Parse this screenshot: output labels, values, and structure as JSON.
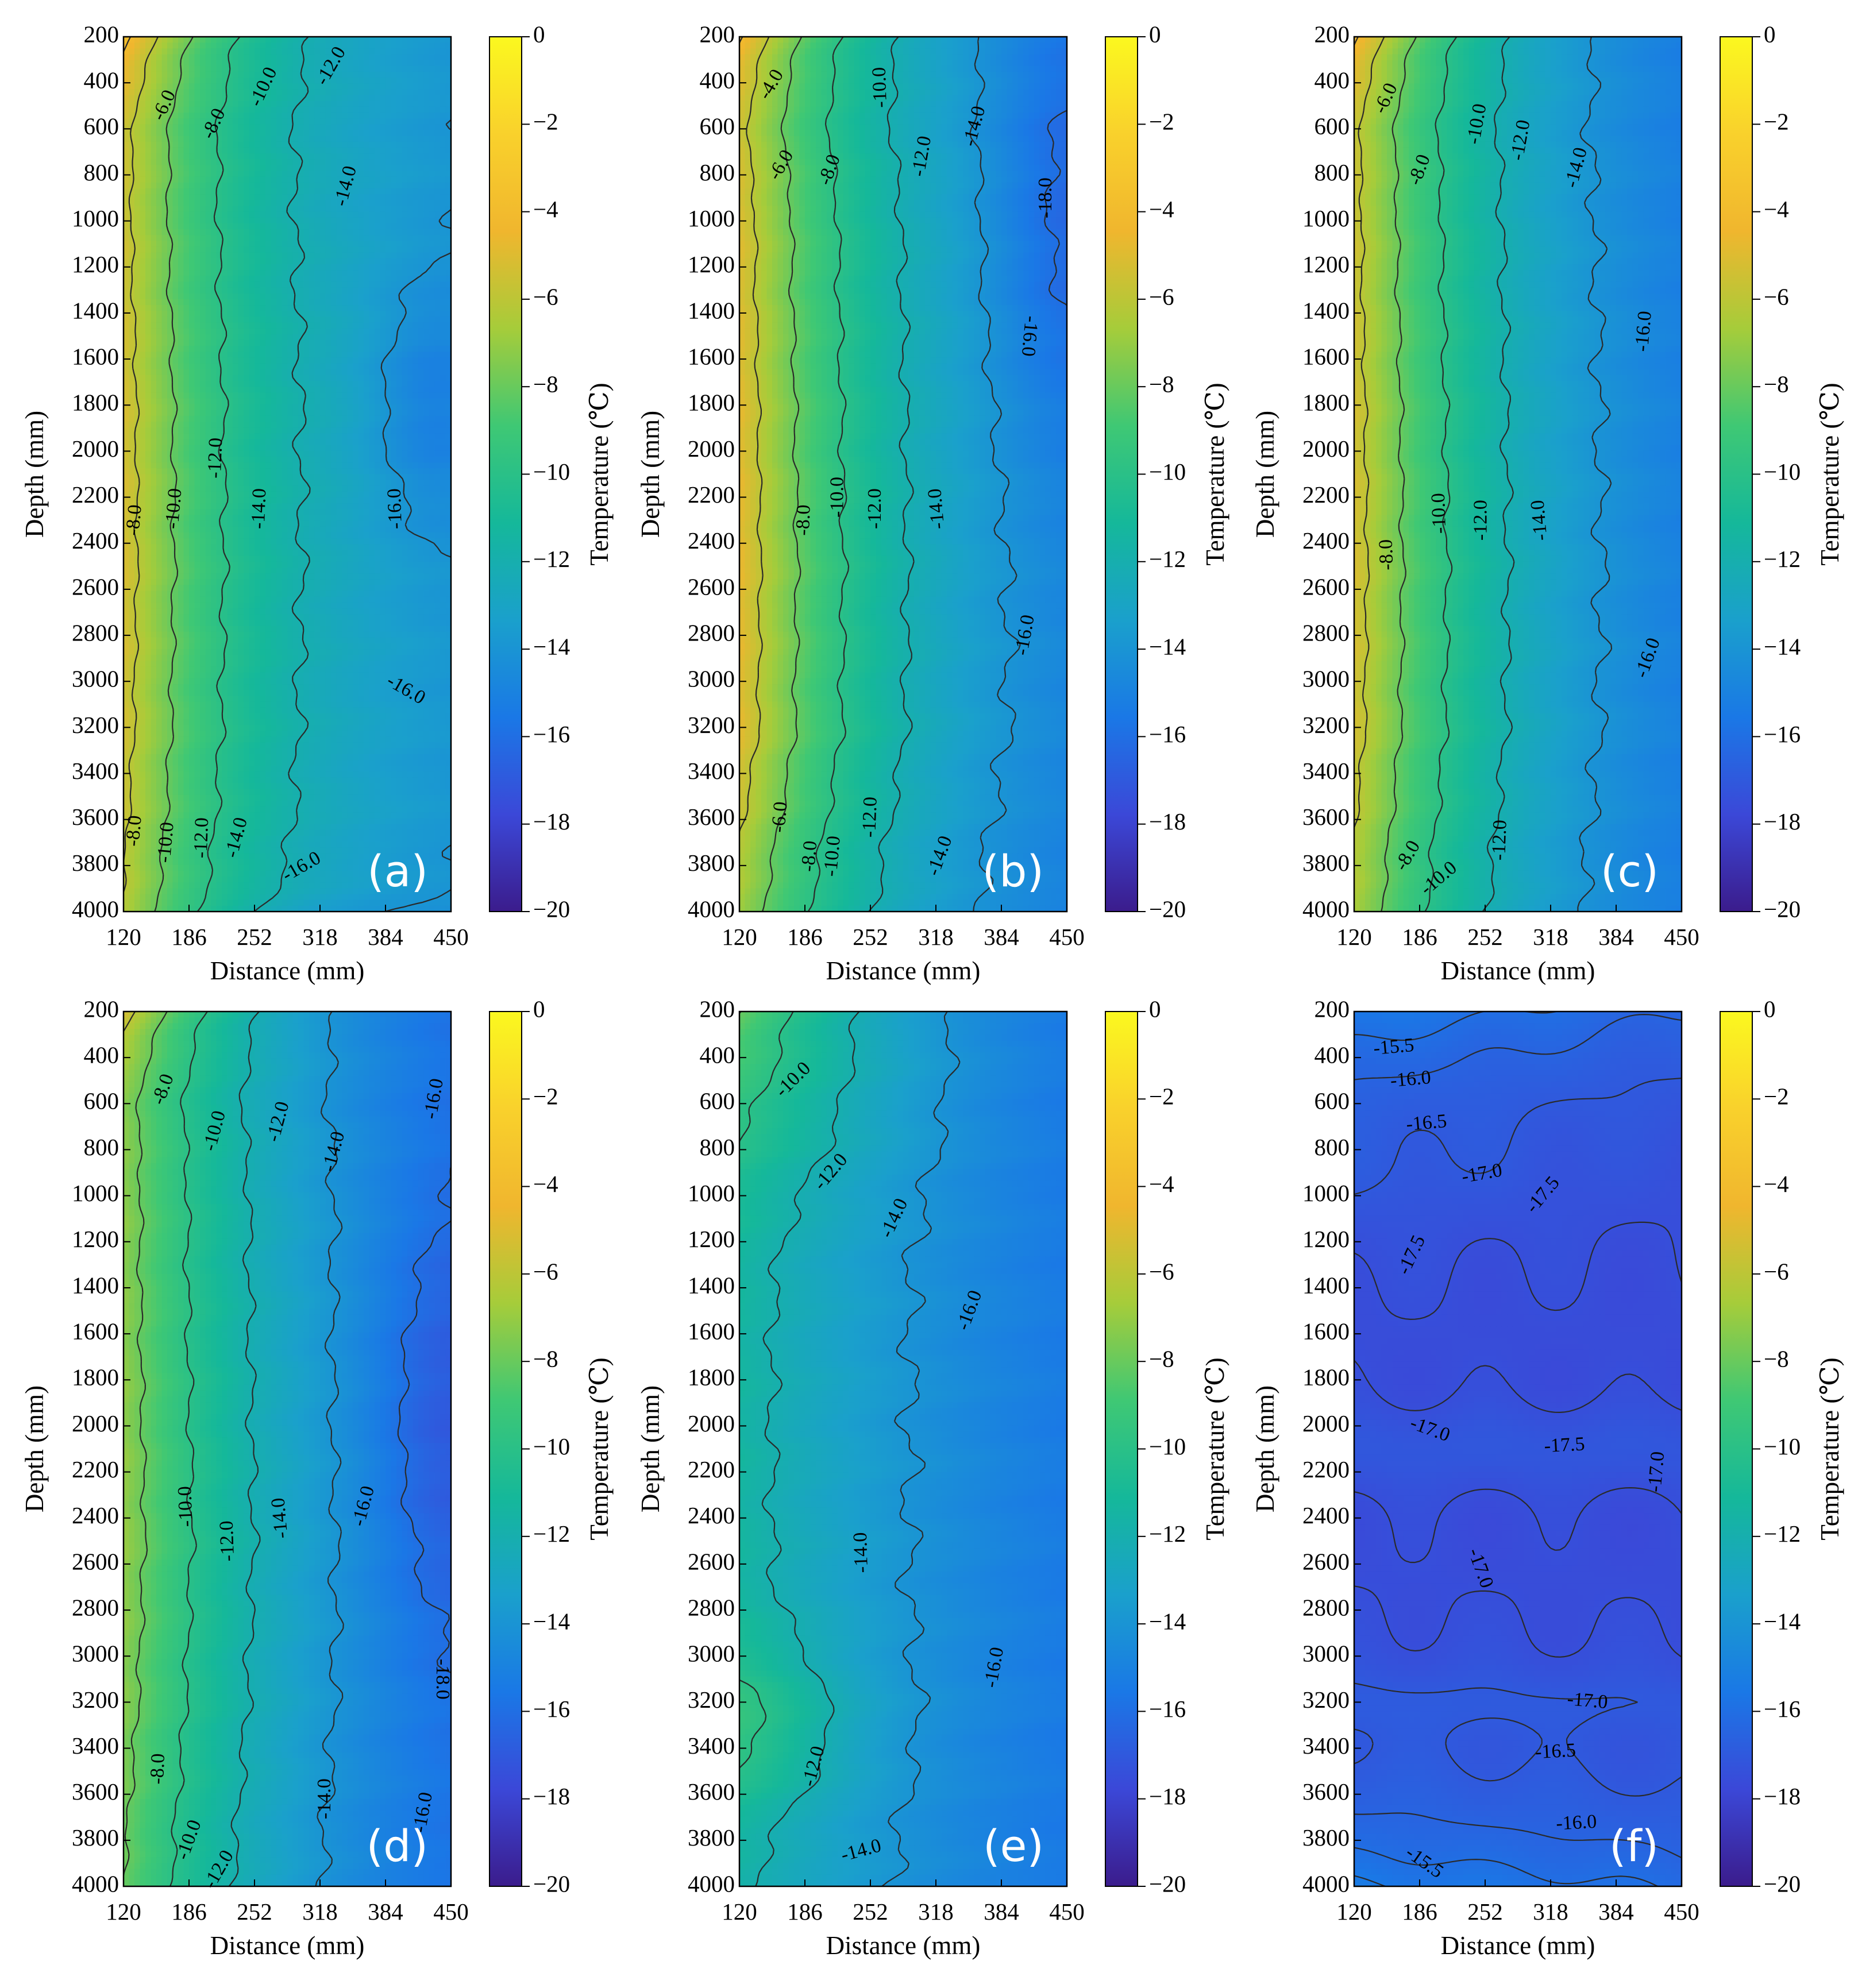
{
  "figure": {
    "colormap": [
      "#3b1c8c",
      "#3b48d8",
      "#1a78e6",
      "#1aa0cc",
      "#15b89a",
      "#3fc874",
      "#a6cc3a",
      "#f0b62e",
      "#f9d12c",
      "#fbf81f"
    ],
    "contour_line_color": "#2a2a2a"
  },
  "chart_data": [
    {
      "type": "heatmap",
      "label": "(a)",
      "xlabel": "Distance (mm)",
      "ylabel": "Depth (mm)",
      "colorbar_label": "Temperature (℃)",
      "x_ticks": [
        "120",
        "186",
        "252",
        "318",
        "384",
        "450"
      ],
      "y_ticks": [
        "200",
        "400",
        "600",
        "800",
        "1000",
        "1200",
        "1400",
        "1600",
        "1800",
        "2000",
        "2200",
        "2400",
        "2600",
        "2800",
        "3000",
        "3200",
        "3400",
        "3600",
        "3800",
        "4000"
      ],
      "colorbar_ticks": [
        "0",
        "−2",
        "−4",
        "−6",
        "−8",
        "−10",
        "−12",
        "−14",
        "−16",
        "−18",
        "−20"
      ],
      "xlim": [
        120,
        450
      ],
      "ylim": [
        200,
        4000
      ],
      "clim": [
        -20,
        0
      ],
      "y_inverted": true,
      "field": {
        "base": -14.8,
        "t0": -5.5,
        "amp": 1.5,
        "kb": 1.4,
        "spread": 145,
        "shape": [
          -0.6,
          -0.1,
          0.2,
          0.25,
          0.1,
          -0.4
        ],
        "extra": [
          {
            "x": 430,
            "y": 1800,
            "sx": 60,
            "sy": 500,
            "a": -1.4
          },
          {
            "x": 320,
            "y": 4200,
            "sx": 150,
            "sy": 250,
            "a": -1.4
          }
        ]
      },
      "contour_levels": [
        -4,
        -6,
        -8,
        -10,
        -12,
        -14,
        -16,
        -18
      ],
      "contour_labels": [
        {
          "text": "-6.0",
          "x": 162,
          "y": 500,
          "rot": -65
        },
        {
          "text": "-8.0",
          "x": 212,
          "y": 580,
          "rot": -65
        },
        {
          "text": "-10.0",
          "x": 262,
          "y": 420,
          "rot": -65
        },
        {
          "text": "-12.0",
          "x": 330,
          "y": 330,
          "rot": -60
        },
        {
          "text": "-14.0",
          "x": 345,
          "y": 850,
          "rot": -75
        },
        {
          "text": "-8.0",
          "x": 132,
          "y": 2300,
          "rot": -85
        },
        {
          "text": "-10.0",
          "x": 172,
          "y": 2250,
          "rot": -85
        },
        {
          "text": "-12.0",
          "x": 214,
          "y": 2030,
          "rot": -88
        },
        {
          "text": "-14.0",
          "x": 258,
          "y": 2250,
          "rot": -88
        },
        {
          "text": "-16.0",
          "x": 395,
          "y": 2250,
          "rot": -92
        },
        {
          "text": "-16.0",
          "x": 404,
          "y": 3040,
          "rot": 30
        },
        {
          "text": "-8.0",
          "x": 132,
          "y": 3650,
          "rot": -85
        },
        {
          "text": "-10.0",
          "x": 164,
          "y": 3700,
          "rot": -85
        },
        {
          "text": "-12.0",
          "x": 200,
          "y": 3680,
          "rot": -88
        },
        {
          "text": "-14.0",
          "x": 235,
          "y": 3680,
          "rot": -75
        },
        {
          "text": "-16.0",
          "x": 300,
          "y": 3810,
          "rot": -30
        }
      ]
    },
    {
      "type": "heatmap",
      "label": "(b)",
      "xlabel": "Distance (mm)",
      "ylabel": "Depth (mm)",
      "colorbar_label": "Temperature (℃)",
      "x_ticks": [
        "120",
        "186",
        "252",
        "318",
        "384",
        "450"
      ],
      "y_ticks": [
        "200",
        "400",
        "600",
        "800",
        "1000",
        "1200",
        "1400",
        "1600",
        "1800",
        "2000",
        "2200",
        "2400",
        "2600",
        "2800",
        "3000",
        "3200",
        "3400",
        "3600",
        "3800",
        "4000"
      ],
      "colorbar_ticks": [
        "0",
        "−2",
        "−4",
        "−6",
        "−8",
        "−10",
        "−12",
        "−14",
        "−16",
        "−18",
        "−20"
      ],
      "xlim": [
        120,
        450
      ],
      "ylim": [
        200,
        4000
      ],
      "clim": [
        -20,
        0
      ],
      "y_inverted": true,
      "field": {
        "base": -16.5,
        "t0": -5.0,
        "amp": 1.8,
        "kb": 1.6,
        "spread": 175,
        "shape": [
          -1.2,
          -0.1,
          0.1,
          0.2,
          0.1,
          -1.0
        ],
        "extra": [
          {
            "x": 450,
            "y": 1000,
            "sx": 70,
            "sy": 900,
            "a": -1.5
          }
        ]
      },
      "contour_levels": [
        -4,
        -6,
        -8,
        -10,
        -12,
        -14,
        -16,
        -18
      ],
      "contour_labels": [
        {
          "text": "-4.0",
          "x": 153,
          "y": 410,
          "rot": -60
        },
        {
          "text": "-6.0",
          "x": 163,
          "y": 760,
          "rot": -60
        },
        {
          "text": "-8.0",
          "x": 212,
          "y": 780,
          "rot": -70
        },
        {
          "text": "-10.0",
          "x": 263,
          "y": 420,
          "rot": -92
        },
        {
          "text": "-12.0",
          "x": 305,
          "y": 720,
          "rot": -80
        },
        {
          "text": "-14.0",
          "x": 358,
          "y": 590,
          "rot": -75
        },
        {
          "text": "-18.0",
          "x": 430,
          "y": 900,
          "rot": -90
        },
        {
          "text": "-16.0",
          "x": 411,
          "y": 1500,
          "rot": 95
        },
        {
          "text": "-8.0",
          "x": 186,
          "y": 2300,
          "rot": -88
        },
        {
          "text": "-10.0",
          "x": 220,
          "y": 2200,
          "rot": -90
        },
        {
          "text": "-12.0",
          "x": 258,
          "y": 2250,
          "rot": -90
        },
        {
          "text": "-14.0",
          "x": 320,
          "y": 2250,
          "rot": -95
        },
        {
          "text": "-16.0",
          "x": 409,
          "y": 2800,
          "rot": -80
        },
        {
          "text": "-6.0",
          "x": 162,
          "y": 3590,
          "rot": -85
        },
        {
          "text": "-8.0",
          "x": 192,
          "y": 3760,
          "rot": -85
        },
        {
          "text": "-10.0",
          "x": 215,
          "y": 3760,
          "rot": -85
        },
        {
          "text": "-12.0",
          "x": 253,
          "y": 3590,
          "rot": -88
        },
        {
          "text": "-14.0",
          "x": 323,
          "y": 3760,
          "rot": -70
        }
      ]
    },
    {
      "type": "heatmap",
      "label": "(c)",
      "xlabel": "Distance (mm)",
      "ylabel": "Depth (mm)",
      "colorbar_label": "Temperature (℃)",
      "x_ticks": [
        "120",
        "186",
        "252",
        "318",
        "384",
        "450"
      ],
      "y_ticks": [
        "200",
        "400",
        "600",
        "800",
        "1000",
        "1200",
        "1400",
        "1600",
        "1800",
        "2000",
        "2200",
        "2400",
        "2600",
        "2800",
        "3000",
        "3200",
        "3400",
        "3600",
        "3800",
        "4000"
      ],
      "colorbar_ticks": [
        "0",
        "−2",
        "−4",
        "−6",
        "−8",
        "−10",
        "−12",
        "−14",
        "−16",
        "−18",
        "−20"
      ],
      "xlim": [
        120,
        450
      ],
      "ylim": [
        200,
        4000
      ],
      "clim": [
        -20,
        0
      ],
      "y_inverted": true,
      "field": {
        "base": -16.8,
        "t0": -5.5,
        "amp": 1.7,
        "kb": 1.5,
        "spread": 175,
        "shape": [
          -0.8,
          -0.1,
          0.1,
          0.2,
          0.1,
          -0.6
        ],
        "extra": []
      },
      "contour_levels": [
        -4,
        -6,
        -8,
        -10,
        -12,
        -14,
        -16,
        -18
      ],
      "contour_labels": [
        {
          "text": "-6.0",
          "x": 153,
          "y": 470,
          "rot": -65
        },
        {
          "text": "-8.0",
          "x": 187,
          "y": 780,
          "rot": -70
        },
        {
          "text": "-10.0",
          "x": 245,
          "y": 580,
          "rot": -80
        },
        {
          "text": "-12.0",
          "x": 289,
          "y": 650,
          "rot": -80
        },
        {
          "text": "-14.0",
          "x": 345,
          "y": 770,
          "rot": -75
        },
        {
          "text": "-16.0",
          "x": 413,
          "y": 1480,
          "rot": -85
        },
        {
          "text": "-8.0",
          "x": 154,
          "y": 2450,
          "rot": -92
        },
        {
          "text": "-10.0",
          "x": 207,
          "y": 2270,
          "rot": -92
        },
        {
          "text": "-12.0",
          "x": 249,
          "y": 2300,
          "rot": -90
        },
        {
          "text": "-14.0",
          "x": 308,
          "y": 2300,
          "rot": -95
        },
        {
          "text": "-16.0",
          "x": 417,
          "y": 2900,
          "rot": -70
        },
        {
          "text": "-8.0",
          "x": 175,
          "y": 3760,
          "rot": -60
        },
        {
          "text": "-10.0",
          "x": 206,
          "y": 3860,
          "rot": -40
        },
        {
          "text": "-12.0",
          "x": 268,
          "y": 3690,
          "rot": -88
        }
      ]
    },
    {
      "type": "heatmap",
      "label": "(d)",
      "xlabel": "Distance (mm)",
      "ylabel": "Depth (mm)",
      "colorbar_label": "Temperature (℃)",
      "x_ticks": [
        "120",
        "186",
        "252",
        "318",
        "384",
        "450"
      ],
      "y_ticks": [
        "200",
        "400",
        "600",
        "800",
        "1000",
        "1200",
        "1400",
        "1600",
        "1800",
        "2000",
        "2200",
        "2400",
        "2600",
        "2800",
        "3000",
        "3200",
        "3400",
        "3600",
        "3800",
        "4000"
      ],
      "colorbar_ticks": [
        "0",
        "−2",
        "−4",
        "−6",
        "−8",
        "−10",
        "−12",
        "−14",
        "−16",
        "−18",
        "−20"
      ],
      "xlim": [
        120,
        450
      ],
      "ylim": [
        200,
        4000
      ],
      "clim": [
        -20,
        0
      ],
      "y_inverted": true,
      "field": {
        "base": -17.8,
        "t0": -7.5,
        "amp": 1.8,
        "kb": 1.6,
        "spread": 210,
        "shape": [
          -0.6,
          0.1,
          0.2,
          0.3,
          0.1,
          -0.3
        ],
        "extra": [
          {
            "x": 440,
            "y": 2000,
            "sx": 70,
            "sy": 900,
            "a": -1.4
          }
        ]
      },
      "contour_levels": [
        -4,
        -6,
        -8,
        -10,
        -12,
        -14,
        -16,
        -18
      ],
      "contour_labels": [
        {
          "text": "-8.0",
          "x": 161,
          "y": 540,
          "rot": -70
        },
        {
          "text": "-10.0",
          "x": 213,
          "y": 720,
          "rot": -75
        },
        {
          "text": "-12.0",
          "x": 277,
          "y": 680,
          "rot": -75
        },
        {
          "text": "-14.0",
          "x": 333,
          "y": 810,
          "rot": -75
        },
        {
          "text": "-16.0",
          "x": 434,
          "y": 580,
          "rot": -80
        },
        {
          "text": "-10.0",
          "x": 184,
          "y": 2350,
          "rot": -92
        },
        {
          "text": "-12.0",
          "x": 226,
          "y": 2500,
          "rot": -92
        },
        {
          "text": "-14.0",
          "x": 279,
          "y": 2400,
          "rot": -95
        },
        {
          "text": "-16.0",
          "x": 363,
          "y": 2350,
          "rot": -75
        },
        {
          "text": "-18.0",
          "x": 440,
          "y": 3100,
          "rot": 90
        },
        {
          "text": "-8.0",
          "x": 156,
          "y": 3490,
          "rot": -88
        },
        {
          "text": "-10.0",
          "x": 187,
          "y": 3800,
          "rot": -70
        },
        {
          "text": "-12.0",
          "x": 217,
          "y": 3930,
          "rot": -60
        },
        {
          "text": "-14.0",
          "x": 324,
          "y": 3620,
          "rot": -90
        },
        {
          "text": "-16.0",
          "x": 423,
          "y": 3680,
          "rot": -80
        }
      ]
    },
    {
      "type": "heatmap",
      "label": "(e)",
      "xlabel": "Distance (mm)",
      "ylabel": "Depth (mm)",
      "colorbar_label": "Temperature (℃)",
      "x_ticks": [
        "120",
        "186",
        "252",
        "318",
        "384",
        "450"
      ],
      "y_ticks": [
        "200",
        "400",
        "600",
        "800",
        "1000",
        "1200",
        "1400",
        "1600",
        "1800",
        "2000",
        "2200",
        "2400",
        "2600",
        "2800",
        "3000",
        "3200",
        "3400",
        "3600",
        "3800",
        "4000"
      ],
      "colorbar_ticks": [
        "0",
        "−2",
        "−4",
        "−6",
        "−8",
        "−10",
        "−12",
        "−14",
        "−16",
        "−18",
        "−20"
      ],
      "xlim": [
        120,
        450
      ],
      "ylim": [
        200,
        4000
      ],
      "clim": [
        -20,
        0
      ],
      "y_inverted": true,
      "field": {
        "base": -17.4,
        "t0": -11.5,
        "amp": 1.2,
        "kb": 1.3,
        "spread": 300,
        "shape": [
          -0.2,
          0.05,
          0.1,
          0.1,
          0.05,
          -0.2
        ],
        "extra": [
          {
            "x": 120,
            "y": 3300,
            "sx": 110,
            "sy": 350,
            "a": 2.0
          },
          {
            "x": 120,
            "y": 500,
            "sx": 180,
            "sy": 500,
            "a": 1.5
          }
        ]
      },
      "contour_levels": [
        -4,
        -6,
        -8,
        -10,
        -12,
        -14,
        -16,
        -18
      ],
      "contour_labels": [
        {
          "text": "-10.0",
          "x": 175,
          "y": 500,
          "rot": -45
        },
        {
          "text": "-12.0",
          "x": 213,
          "y": 900,
          "rot": -50
        },
        {
          "text": "-14.0",
          "x": 277,
          "y": 1100,
          "rot": -65
        },
        {
          "text": "-16.0",
          "x": 353,
          "y": 1500,
          "rot": -70
        },
        {
          "text": "-14.0",
          "x": 244,
          "y": 2550,
          "rot": -92
        },
        {
          "text": "-16.0",
          "x": 378,
          "y": 3050,
          "rot": -80
        },
        {
          "text": "-12.0",
          "x": 196,
          "y": 3480,
          "rot": -75
        },
        {
          "text": "-14.0",
          "x": 243,
          "y": 3850,
          "rot": -15
        }
      ]
    },
    {
      "type": "heatmap",
      "label": "(f)",
      "xlabel": "Distance (mm)",
      "ylabel": "Depth (mm)",
      "colorbar_label": "Temperature (℃)",
      "x_ticks": [
        "120",
        "186",
        "252",
        "318",
        "384",
        "450"
      ],
      "y_ticks": [
        "200",
        "400",
        "600",
        "800",
        "1000",
        "1200",
        "1400",
        "1600",
        "1800",
        "2000",
        "2200",
        "2400",
        "2600",
        "2800",
        "3000",
        "3200",
        "3400",
        "3600",
        "3800",
        "4000"
      ],
      "colorbar_ticks": [
        "0",
        "−2",
        "−4",
        "−6",
        "−8",
        "−10",
        "−12",
        "−14",
        "−16",
        "−18",
        "−20"
      ],
      "xlim": [
        120,
        450
      ],
      "ylim": [
        200,
        4000
      ],
      "clim": [
        -20,
        0
      ],
      "y_inverted": true,
      "flat": true,
      "contour_levels": [
        -15.5,
        -16.0,
        -16.5,
        -17.0,
        -17.5
      ],
      "contour_labels": [
        {
          "text": "-15.5",
          "x": 160,
          "y": 360,
          "rot": -5
        },
        {
          "text": "-16.0",
          "x": 177,
          "y": 500,
          "rot": -5
        },
        {
          "text": "-16.5",
          "x": 193,
          "y": 690,
          "rot": -5
        },
        {
          "text": "-17.0",
          "x": 249,
          "y": 910,
          "rot": -10
        },
        {
          "text": "-17.5",
          "x": 311,
          "y": 1000,
          "rot": -50
        },
        {
          "text": "-17.5",
          "x": 179,
          "y": 1260,
          "rot": -65
        },
        {
          "text": "-17.0",
          "x": 196,
          "y": 2020,
          "rot": 20
        },
        {
          "text": "-17.5",
          "x": 332,
          "y": 2090,
          "rot": -3
        },
        {
          "text": "-17.0",
          "x": 426,
          "y": 2200,
          "rot": -85
        },
        {
          "text": "-17.0",
          "x": 246,
          "y": 2620,
          "rot": 70
        },
        {
          "text": "-17.0",
          "x": 355,
          "y": 3200,
          "rot": 5
        },
        {
          "text": "-16.5",
          "x": 323,
          "y": 3420,
          "rot": -3
        },
        {
          "text": "-16.0",
          "x": 344,
          "y": 3730,
          "rot": -3
        },
        {
          "text": "-15.5",
          "x": 190,
          "y": 3900,
          "rot": 35
        }
      ]
    }
  ]
}
